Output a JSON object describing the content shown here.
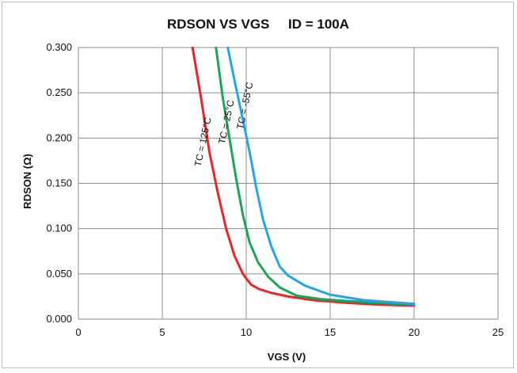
{
  "chart_data": {
    "type": "line",
    "title": "RDSON VS VGS     ID = 100A",
    "xlabel": "VGS (V)",
    "ylabel": "RDSON (Ω)",
    "xlim": [
      0,
      25
    ],
    "ylim": [
      0,
      0.3
    ],
    "x_ticks": [
      0,
      5,
      10,
      15,
      20,
      25
    ],
    "y_ticks": [
      0.0,
      0.05,
      0.1,
      0.15,
      0.2,
      0.25,
      0.3
    ],
    "x_tick_labels": [
      "0",
      "5",
      "10",
      "15",
      "20",
      "25"
    ],
    "y_tick_labels": [
      "0.000",
      "0.050",
      "0.100",
      "0.150",
      "0.200",
      "0.250",
      "0.300"
    ],
    "grid": true,
    "legend": "none",
    "series": [
      {
        "name": "TC = 125°C",
        "color": "#e8262a",
        "x": [
          6.8,
          7.3,
          7.8,
          8.3,
          8.8,
          9.3,
          9.8,
          10.0,
          10.3,
          10.8,
          11.5,
          12.5,
          14.0,
          16.0,
          18.0,
          20.0
        ],
        "y": [
          0.3,
          0.245,
          0.185,
          0.14,
          0.1,
          0.07,
          0.05,
          0.045,
          0.038,
          0.033,
          0.029,
          0.025,
          0.021,
          0.018,
          0.016,
          0.015
        ]
      },
      {
        "name": "TC = 25°C",
        "color": "#1aa655",
        "x": [
          8.2,
          8.6,
          9.0,
          9.4,
          9.8,
          10.2,
          10.7,
          11.3,
          12.0,
          13.0,
          14.5,
          16.0,
          18.0,
          20.0
        ],
        "y": [
          0.3,
          0.245,
          0.2,
          0.155,
          0.115,
          0.085,
          0.063,
          0.047,
          0.035,
          0.026,
          0.022,
          0.02,
          0.018,
          0.016
        ]
      },
      {
        "name": "TC = -55°C",
        "color": "#22a7e3",
        "x": [
          8.9,
          9.4,
          9.8,
          10.2,
          10.6,
          11.0,
          11.5,
          12.0,
          12.5,
          13.5,
          15.0,
          17.0,
          20.0
        ],
        "y": [
          0.3,
          0.255,
          0.22,
          0.185,
          0.145,
          0.11,
          0.08,
          0.058,
          0.048,
          0.037,
          0.027,
          0.021,
          0.017
        ]
      }
    ]
  }
}
